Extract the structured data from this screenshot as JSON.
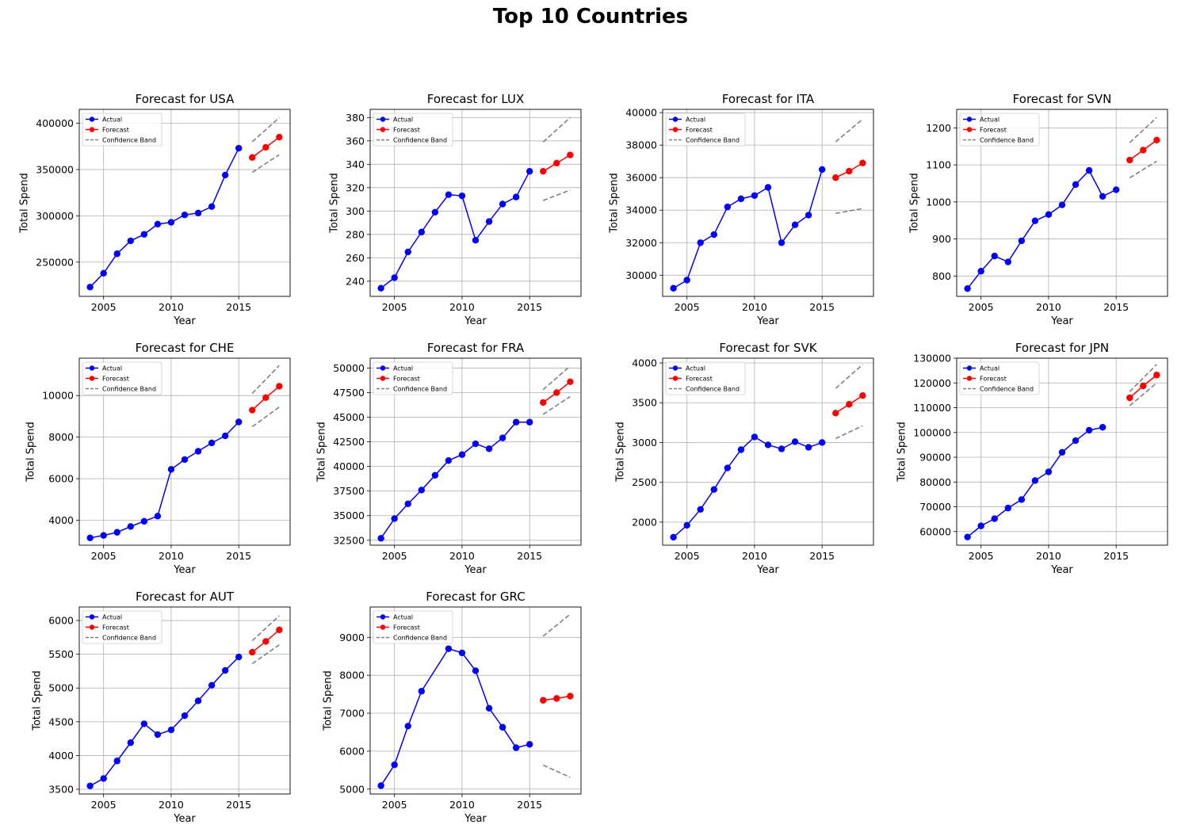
{
  "title": "Top 10 Countries",
  "colors": {
    "actual": "#0000ff",
    "forecast": "#ff0000",
    "band": "#808080",
    "grid": "#b0b0b0"
  },
  "legend_labels": {
    "actual": "Actual",
    "forecast": "Forecast",
    "band": "Confidence Band"
  },
  "chart_data": [
    {
      "type": "line",
      "title": "Forecast for USA",
      "xlabel": "Year",
      "ylabel": "Total Spend",
      "grid": true,
      "legend": "upper-left",
      "xlim": [
        2003.2,
        2018.8
      ],
      "ylim": [
        213000,
        415000
      ],
      "xticks": [
        2005,
        2010,
        2015
      ],
      "yticks": [
        250000,
        300000,
        350000,
        400000
      ],
      "ytick_labels": [
        "250000",
        "300000",
        "350000",
        "400000"
      ],
      "series": [
        {
          "name": "Actual",
          "x": [
            2004,
            2005,
            2006,
            2007,
            2008,
            2009,
            2010,
            2011,
            2012,
            2013,
            2014,
            2015
          ],
          "y": [
            223000,
            238000,
            259000,
            273000,
            280000,
            291000,
            293000,
            301000,
            303000,
            310000,
            344000,
            373000
          ]
        },
        {
          "name": "Forecast",
          "x": [
            2016,
            2017,
            2018
          ],
          "y": [
            363000,
            374000,
            385000
          ]
        },
        {
          "name": "Confidence Band",
          "x": [
            2016,
            2018
          ],
          "upper": [
            380000,
            406000
          ],
          "lower": [
            347000,
            366000
          ]
        }
      ]
    },
    {
      "type": "line",
      "title": "Forecast for LUX",
      "xlabel": "Year",
      "ylabel": "Total Spend",
      "grid": true,
      "legend": "upper-left",
      "xlim": [
        2003.2,
        2018.8
      ],
      "ylim": [
        227,
        387
      ],
      "xticks": [
        2005,
        2010,
        2015
      ],
      "yticks": [
        240,
        260,
        280,
        300,
        320,
        340,
        360,
        380
      ],
      "ytick_labels": [
        "240",
        "260",
        "280",
        "300",
        "320",
        "340",
        "360",
        "380"
      ],
      "series": [
        {
          "name": "Actual",
          "x": [
            2004,
            2005,
            2006,
            2007,
            2008,
            2009,
            2010,
            2011,
            2012,
            2013,
            2014,
            2015
          ],
          "y": [
            234,
            243,
            265,
            282,
            299,
            314,
            313,
            275,
            291,
            306,
            312,
            334
          ]
        },
        {
          "name": "Forecast",
          "x": [
            2016,
            2017,
            2018
          ],
          "y": [
            334,
            341,
            348
          ]
        },
        {
          "name": "Confidence Band",
          "x": [
            2016,
            2018
          ],
          "upper": [
            359,
            380
          ],
          "lower": [
            309,
            318
          ]
        }
      ]
    },
    {
      "type": "line",
      "title": "Forecast for ITA",
      "xlabel": "Year",
      "ylabel": "Total Spend",
      "grid": true,
      "legend": "upper-left",
      "xlim": [
        2003.2,
        2018.8
      ],
      "ylim": [
        28700,
        40200
      ],
      "xticks": [
        2005,
        2010,
        2015
      ],
      "yticks": [
        30000,
        32000,
        34000,
        36000,
        38000,
        40000
      ],
      "ytick_labels": [
        "30000",
        "32000",
        "34000",
        "36000",
        "38000",
        "40000"
      ],
      "series": [
        {
          "name": "Actual",
          "x": [
            2004,
            2005,
            2006,
            2007,
            2008,
            2009,
            2010,
            2011,
            2012,
            2013,
            2014,
            2015
          ],
          "y": [
            29200,
            29700,
            32000,
            32500,
            34200,
            34700,
            34900,
            35400,
            32000,
            33100,
            33700,
            36500
          ]
        },
        {
          "name": "Forecast",
          "x": [
            2016,
            2017,
            2018
          ],
          "y": [
            36000,
            36400,
            36900
          ]
        },
        {
          "name": "Confidence Band",
          "x": [
            2016,
            2018
          ],
          "upper": [
            38200,
            39600
          ],
          "lower": [
            33800,
            34100
          ]
        }
      ]
    },
    {
      "type": "line",
      "title": "Forecast for SVN",
      "xlabel": "Year",
      "ylabel": "Total Spend",
      "grid": true,
      "legend": "upper-left",
      "xlim": [
        2003.2,
        2018.8
      ],
      "ylim": [
        745,
        1250
      ],
      "xticks": [
        2005,
        2010,
        2015
      ],
      "yticks": [
        800,
        900,
        1000,
        1100,
        1200
      ],
      "ytick_labels": [
        "800",
        "900",
        "1000",
        "1100",
        "1200"
      ],
      "series": [
        {
          "name": "Actual",
          "x": [
            2004,
            2005,
            2006,
            2007,
            2008,
            2009,
            2010,
            2011,
            2012,
            2013,
            2014,
            2015
          ],
          "y": [
            766,
            813,
            854,
            838,
            895,
            949,
            966,
            992,
            1047,
            1085,
            1015,
            1033
          ]
        },
        {
          "name": "Forecast",
          "x": [
            2016,
            2017,
            2018
          ],
          "y": [
            1113,
            1140,
            1167
          ]
        },
        {
          "name": "Confidence Band",
          "x": [
            2016,
            2018
          ],
          "upper": [
            1160,
            1228
          ],
          "lower": [
            1065,
            1110
          ]
        }
      ]
    },
    {
      "type": "line",
      "title": "Forecast for CHE",
      "xlabel": "Year",
      "ylabel": "Total Spend",
      "grid": true,
      "legend": "upper-left",
      "xlim": [
        2003.2,
        2018.8
      ],
      "ylim": [
        2800,
        11800
      ],
      "xticks": [
        2005,
        2010,
        2015
      ],
      "yticks": [
        4000,
        6000,
        8000,
        10000
      ],
      "ytick_labels": [
        "4000",
        "6000",
        "8000",
        "10000"
      ],
      "series": [
        {
          "name": "Actual",
          "x": [
            2004,
            2005,
            2006,
            2007,
            2008,
            2009,
            2010,
            2011,
            2012,
            2013,
            2014,
            2015
          ],
          "y": [
            3150,
            3270,
            3420,
            3700,
            3950,
            4200,
            6450,
            6920,
            7320,
            7720,
            8060,
            8730
          ]
        },
        {
          "name": "Forecast",
          "x": [
            2016,
            2017,
            2018
          ],
          "y": [
            9300,
            9900,
            10450
          ]
        },
        {
          "name": "Confidence Band",
          "x": [
            2016,
            2018
          ],
          "upper": [
            10100,
            11450
          ],
          "lower": [
            8500,
            9450
          ]
        }
      ]
    },
    {
      "type": "line",
      "title": "Forecast for FRA",
      "xlabel": "Year",
      "ylabel": "Total Spend",
      "grid": true,
      "legend": "upper-left",
      "xlim": [
        2003.2,
        2018.8
      ],
      "ylim": [
        32000,
        51000
      ],
      "xticks": [
        2005,
        2010,
        2015
      ],
      "yticks": [
        32500,
        35000,
        37500,
        40000,
        42500,
        45000,
        47500,
        50000
      ],
      "ytick_labels": [
        "32500",
        "35000",
        "37500",
        "40000",
        "42500",
        "45000",
        "47500",
        "50000"
      ],
      "series": [
        {
          "name": "Actual",
          "x": [
            2004,
            2005,
            2006,
            2007,
            2008,
            2009,
            2010,
            2011,
            2012,
            2013,
            2014,
            2015
          ],
          "y": [
            32700,
            34700,
            36200,
            37600,
            39100,
            40600,
            41200,
            42300,
            41800,
            42900,
            44500,
            44500
          ]
        },
        {
          "name": "Forecast",
          "x": [
            2016,
            2017,
            2018
          ],
          "y": [
            46500,
            47500,
            48600
          ]
        },
        {
          "name": "Confidence Band",
          "x": [
            2016,
            2018
          ],
          "upper": [
            47800,
            50200
          ],
          "lower": [
            45300,
            47100
          ]
        }
      ]
    },
    {
      "type": "line",
      "title": "Forecast for SVK",
      "xlabel": "Year",
      "ylabel": "Total Spend",
      "grid": true,
      "legend": "upper-left",
      "xlim": [
        2003.2,
        2018.8
      ],
      "ylim": [
        1710,
        4060
      ],
      "xticks": [
        2005,
        2010,
        2015
      ],
      "yticks": [
        2000,
        2500,
        3000,
        3500,
        4000
      ],
      "ytick_labels": [
        "2000",
        "2500",
        "3000",
        "3500",
        "4000"
      ],
      "series": [
        {
          "name": "Actual",
          "x": [
            2004,
            2005,
            2006,
            2007,
            2008,
            2009,
            2010,
            2011,
            2012,
            2013,
            2014,
            2015
          ],
          "y": [
            1810,
            1960,
            2160,
            2410,
            2680,
            2910,
            3070,
            2970,
            2920,
            3010,
            2940,
            3000
          ]
        },
        {
          "name": "Forecast",
          "x": [
            2016,
            2017,
            2018
          ],
          "y": [
            3370,
            3480,
            3590
          ]
        },
        {
          "name": "Confidence Band",
          "x": [
            2016,
            2018
          ],
          "upper": [
            3680,
            3980
          ],
          "lower": [
            3050,
            3210
          ]
        }
      ]
    },
    {
      "type": "line",
      "title": "Forecast for JPN",
      "xlabel": "Year",
      "ylabel": "Total Spend",
      "grid": true,
      "legend": "upper-left",
      "xlim": [
        2003.2,
        2018.8
      ],
      "ylim": [
        54500,
        130000
      ],
      "xticks": [
        2005,
        2010,
        2015
      ],
      "yticks": [
        60000,
        70000,
        80000,
        90000,
        100000,
        110000,
        120000,
        130000
      ],
      "ytick_labels": [
        "60000",
        "70000",
        "80000",
        "90000",
        "100000",
        "110000",
        "120000",
        "130000"
      ],
      "series": [
        {
          "name": "Actual",
          "x": [
            2004,
            2005,
            2006,
            2007,
            2008,
            2009,
            2010,
            2011,
            2012,
            2013,
            2014
          ],
          "y": [
            57800,
            62300,
            65200,
            69500,
            72900,
            80600,
            84100,
            92000,
            96700,
            100900,
            102100
          ]
        },
        {
          "name": "Forecast",
          "x": [
            2016,
            2017,
            2018
          ],
          "y": [
            114000,
            118800,
            123200
          ]
        },
        {
          "name": "Confidence Band",
          "x": [
            2016,
            2018
          ],
          "upper": [
            116500,
            127500
          ],
          "lower": [
            110800,
            120000
          ]
        }
      ]
    },
    {
      "type": "line",
      "title": "Forecast for AUT",
      "xlabel": "Year",
      "ylabel": "Total Spend",
      "grid": true,
      "legend": "upper-left",
      "xlim": [
        2003.2,
        2018.8
      ],
      "ylim": [
        3430,
        6200
      ],
      "xticks": [
        2005,
        2010,
        2015
      ],
      "yticks": [
        3500,
        4000,
        4500,
        5000,
        5500,
        6000
      ],
      "ytick_labels": [
        "3500",
        "4000",
        "4500",
        "5000",
        "5500",
        "6000"
      ],
      "series": [
        {
          "name": "Actual",
          "x": [
            2004,
            2005,
            2006,
            2007,
            2008,
            2009,
            2010,
            2011,
            2012,
            2013,
            2014,
            2015
          ],
          "y": [
            3550,
            3660,
            3920,
            4190,
            4470,
            4310,
            4380,
            4590,
            4810,
            5040,
            5260,
            5460
          ]
        },
        {
          "name": "Forecast",
          "x": [
            2016,
            2017,
            2018
          ],
          "y": [
            5530,
            5690,
            5860
          ]
        },
        {
          "name": "Confidence Band",
          "x": [
            2016,
            2018
          ],
          "upper": [
            5700,
            6070
          ],
          "lower": [
            5360,
            5640
          ]
        }
      ]
    },
    {
      "type": "line",
      "title": "Forecast for GRC",
      "xlabel": "Year",
      "ylabel": "Total Spend",
      "grid": true,
      "legend": "upper-left",
      "xlim": [
        2003.2,
        2018.8
      ],
      "ylim": [
        4870,
        9800
      ],
      "xticks": [
        2005,
        2010,
        2015
      ],
      "yticks": [
        5000,
        6000,
        7000,
        8000,
        9000
      ],
      "ytick_labels": [
        "5000",
        "6000",
        "7000",
        "8000",
        "9000"
      ],
      "series": [
        {
          "name": "Actual",
          "x": [
            2004,
            2005,
            2006,
            2007,
            2009,
            2010,
            2011,
            2012,
            2013,
            2014,
            2015
          ],
          "y": [
            5090,
            5640,
            6660,
            7580,
            8700,
            8590,
            8120,
            7130,
            6630,
            6090,
            6180
          ]
        },
        {
          "name": "Forecast",
          "x": [
            2016,
            2017,
            2018
          ],
          "y": [
            7340,
            7390,
            7450
          ]
        },
        {
          "name": "Confidence Band",
          "x": [
            2016,
            2018
          ],
          "upper": [
            9030,
            9610
          ],
          "lower": [
            5630,
            5310
          ]
        }
      ]
    }
  ]
}
